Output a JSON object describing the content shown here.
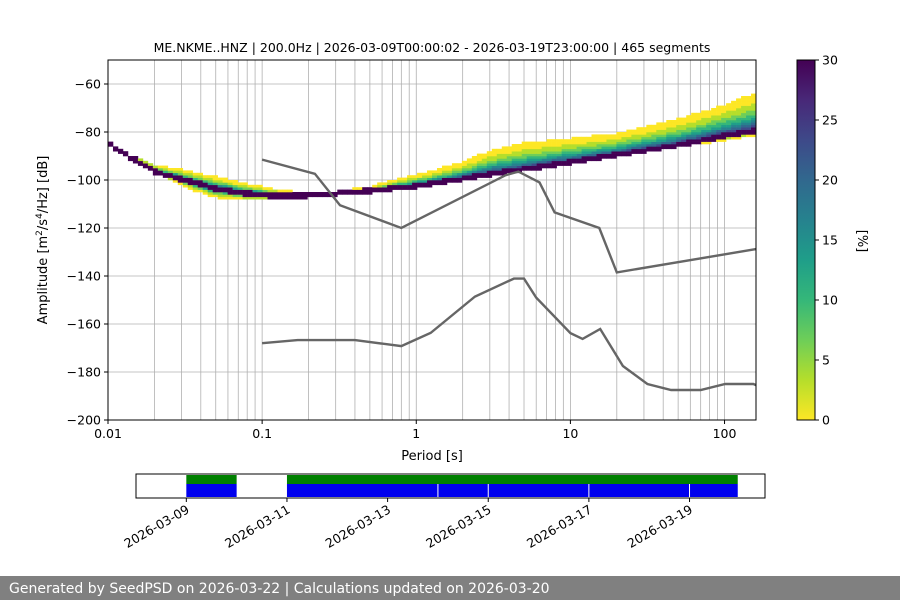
{
  "colors": {
    "noise_model_line": "#666666",
    "availability_data": "#0000ee",
    "availability_gaps": "#008000",
    "footer_bg": "#808080",
    "grid": "#b0b0b0"
  },
  "chart_data": {
    "type": "heatmap",
    "title": "ME.NKME..HNZ | 200.0Hz | 2026-03-09T00:00:02 - 2026-03-19T23:00:00 | 465 segments",
    "xlabel": "Period [s]",
    "ylabel_parts": [
      "Amplitude [m",
      "2",
      "/s",
      "4",
      "/Hz] [dB]"
    ],
    "x_scale": "log",
    "xlim": [
      0.01,
      160
    ],
    "ylim": [
      -200,
      -50
    ],
    "x_ticks": [
      {
        "value": 0.01,
        "label": "0.01"
      },
      {
        "value": 0.1,
        "label": "0.1"
      },
      {
        "value": 1,
        "label": "1"
      },
      {
        "value": 10,
        "label": "10"
      },
      {
        "value": 100,
        "label": "100"
      }
    ],
    "y_ticks": [
      {
        "value": -60,
        "label": "−60"
      },
      {
        "value": -80,
        "label": "−80"
      },
      {
        "value": -100,
        "label": "−100"
      },
      {
        "value": -120,
        "label": "−120"
      },
      {
        "value": -140,
        "label": "−140"
      },
      {
        "value": -160,
        "label": "−160"
      },
      {
        "value": -180,
        "label": "−180"
      },
      {
        "value": -200,
        "label": "−200"
      }
    ],
    "colorbar": {
      "label": "[%]",
      "range": [
        0,
        30
      ],
      "ticks": [
        0,
        5,
        10,
        15,
        20,
        25,
        30
      ],
      "colormap": [
        "#fde725",
        "#b5de2b",
        "#6ece58",
        "#35b779",
        "#1f9e89",
        "#26828e",
        "#31688e",
        "#3e4989",
        "#482878",
        "#440154"
      ]
    },
    "psd_band": {
      "period": [
        0.01,
        0.013,
        0.016,
        0.02,
        0.03,
        0.05,
        0.08,
        0.12,
        0.2,
        0.3,
        0.5,
        1,
        2,
        3,
        5,
        10,
        20,
        50,
        100,
        160
      ],
      "mode_db": [
        -85,
        -90,
        -93,
        -97,
        -100,
        -104,
        -106,
        -107,
        -107,
        -106,
        -105,
        -103,
        -100,
        -98,
        -96,
        -93,
        -90,
        -86,
        -82,
        -80
      ],
      "upper_db": [
        -85,
        -90,
        -91,
        -94,
        -96,
        -99,
        -102,
        -104,
        -106,
        -105,
        -103,
        -98,
        -93,
        -88,
        -85,
        -83,
        -81,
        -75,
        -69,
        -64
      ],
      "lower_db": [
        -85,
        -90,
        -93,
        -97,
        -103,
        -108,
        -109,
        -109,
        -108,
        -107,
        -106,
        -104,
        -101,
        -99,
        -97,
        -94,
        -91,
        -87,
        -84,
        -82
      ]
    },
    "noise_models": {
      "high_noise_model": {
        "period": [
          0.1,
          0.22,
          0.32,
          0.8,
          3.8,
          4.6,
          6.3,
          7.9,
          15.4,
          20,
          160
        ],
        "db": [
          -91.5,
          -97.4,
          -110.5,
          -120,
          -98,
          -96.5,
          -101,
          -113.5,
          -120,
          -138.5,
          -128.8
        ]
      },
      "low_noise_model": {
        "period": [
          0.1,
          0.17,
          0.4,
          0.8,
          1.24,
          2.4,
          4.3,
          5,
          6,
          10,
          12,
          15.6,
          21.9,
          31.6,
          45,
          70,
          101,
          154,
          160
        ],
        "db": [
          -168,
          -166.7,
          -166.7,
          -169.2,
          -163.7,
          -148.6,
          -141.1,
          -141.1,
          -149,
          -163.8,
          -166.2,
          -162.1,
          -177.5,
          -185,
          -187.5,
          -187.5,
          -185,
          -185,
          -185.5
        ]
      }
    },
    "availability": {
      "date_range": [
        "2026-03-08T00:00",
        "2026-03-20T12:00"
      ],
      "data_segments": [
        [
          "2026-03-09T00:00",
          "2026-03-10T00:00"
        ],
        [
          "2026-03-11T00:00",
          "2026-03-19T23:00"
        ]
      ],
      "gap_markers": [
        "2026-03-14T00:00",
        "2026-03-15T00:00",
        "2026-03-17T00:00",
        "2026-03-19T00:00"
      ],
      "tick_labels": [
        "2026-03-09",
        "2026-03-11",
        "2026-03-13",
        "2026-03-15",
        "2026-03-17",
        "2026-03-19"
      ]
    }
  },
  "footer": {
    "text": "Generated by SeedPSD on 2026-03-22 | Calculations updated on 2026-03-20"
  }
}
